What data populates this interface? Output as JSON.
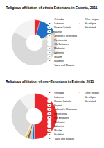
{
  "chart_data": [
    {
      "type": "pie",
      "title": "Religious affiliation of ethnic Estonians in Estonia, 2011",
      "categories": [
        "Orthodox",
        "Lutheran",
        "Roman Catholic",
        "Baptist",
        "Jehovah's Witnesses",
        "Pentecostal",
        "Old Believers",
        "Methodist",
        "Adventist",
        "Muslim",
        "Buddhist",
        "Taara and Maausk",
        "Other religion",
        "No religion",
        "Not stated"
      ],
      "values": [
        4.0,
        13.3,
        0.3,
        0.5,
        0.4,
        0.3,
        0.2,
        0.2,
        0.1,
        0.1,
        0.1,
        0.3,
        1.2,
        62.0,
        17.0
      ],
      "colors": [
        "#e8262b",
        "#1f6fc5",
        "#6baed6",
        "#2ca02c",
        "#ff7f0e",
        "#9467bd",
        "#8c564b",
        "#e377c2",
        "#17becf",
        "#bcbd22",
        "#7f7f7f",
        "#31a354",
        "#fdd0a2",
        "#d9d9d9",
        "#f2f2f2"
      ],
      "legend": "right"
    },
    {
      "type": "pie",
      "title": "Religious affiliation of non-Estonians in Estonia, 2011",
      "categories": [
        "Orthodox",
        "Lutheran",
        "Roman Catholic",
        "Baptist",
        "Jehovah's Witnesses",
        "Pentecostal",
        "Old Believers",
        "Methodist",
        "Adventist",
        "Muslim",
        "Buddhist",
        "Taara and Maausk",
        "Other religion",
        "No religion",
        "Not stated"
      ],
      "values": [
        50.0,
        1.5,
        0.8,
        0.3,
        0.6,
        0.3,
        1.5,
        0.1,
        0.1,
        1.0,
        0.1,
        0.0,
        0.7,
        32.0,
        11.0
      ],
      "colors": [
        "#e8262b",
        "#1f6fc5",
        "#6baed6",
        "#2ca02c",
        "#ff7f0e",
        "#9467bd",
        "#8c564b",
        "#e377c2",
        "#17becf",
        "#bcbd22",
        "#7f7f7f",
        "#31a354",
        "#fdd0a2",
        "#d9d9d9",
        "#f2f2f2"
      ],
      "legend": "right"
    }
  ]
}
